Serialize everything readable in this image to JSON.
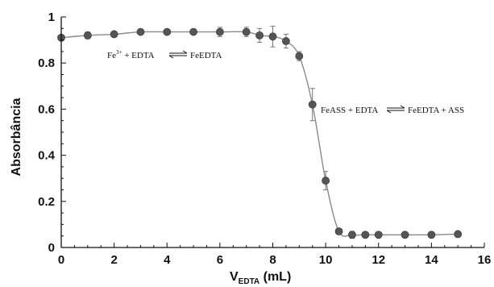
{
  "chart_data": {
    "type": "scatter",
    "xlabel": {
      "main": "V",
      "subscript": "EDTA",
      "unit": "(mL)"
    },
    "ylabel": "Absorbância",
    "xlim": [
      0,
      16
    ],
    "ylim": [
      0,
      1
    ],
    "x_ticks": [
      "0",
      "2",
      "4",
      "6",
      "8",
      "10",
      "12",
      "14",
      "16"
    ],
    "y_ticks": [
      "0",
      "0.2",
      "0.4",
      "0.6",
      "0.8",
      "1"
    ],
    "grid": false,
    "colors": {
      "marker": "#555555",
      "line": "#8a8a8a",
      "axis": "#111111"
    },
    "series": [
      {
        "x": [
          0,
          1,
          2,
          3,
          4,
          5,
          6,
          7,
          7.5,
          8,
          8.5,
          9,
          9.5,
          10,
          10.5,
          11,
          11.5,
          12,
          13,
          14,
          15
        ],
        "y": [
          0.91,
          0.92,
          0.925,
          0.935,
          0.935,
          0.935,
          0.935,
          0.935,
          0.92,
          0.915,
          0.895,
          0.83,
          0.62,
          0.29,
          0.07,
          0.055,
          0.055,
          0.055,
          0.055,
          0.055,
          0.058
        ],
        "err": [
          0.012,
          0.015,
          0.01,
          0.01,
          0.01,
          0.01,
          0.02,
          0.02,
          0.03,
          0.045,
          0.03,
          0.02,
          0.07,
          0.04,
          0.01,
          0.015,
          0.01,
          0.008,
          0.008,
          0.008,
          0.008
        ]
      }
    ],
    "annotations": [
      {
        "text": "Fe",
        "sup": "3+",
        "rest": " + EDTA",
        "product": "FeEDTA",
        "at": [
          2.0,
          0.835
        ]
      },
      {
        "text": "FeASS + EDTA",
        "product": "FeEDTA + ASS",
        "at": [
          9.8,
          0.6
        ]
      }
    ]
  }
}
